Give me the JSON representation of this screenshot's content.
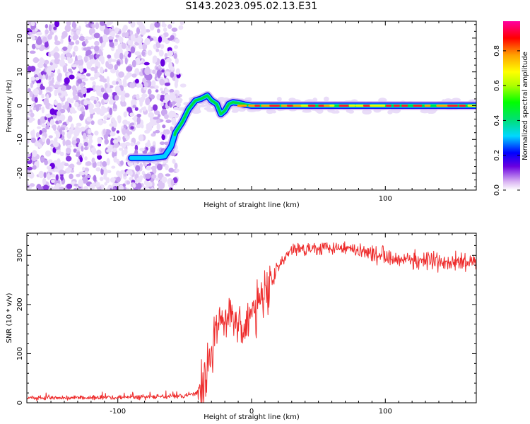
{
  "title": "S143.2023.095.02.13.E31",
  "chart_data": [
    {
      "type": "heatmap",
      "xlabel": "Height of straight line (km)",
      "ylabel": "Frequency (Hz)",
      "xlim": [
        -168,
        168
      ],
      "ylim": [
        -25,
        25
      ],
      "x_ticks": [
        -100,
        0,
        100
      ],
      "x_tick_labels": [
        "-100",
        "",
        "100"
      ],
      "y_ticks": [
        -20,
        -10,
        0,
        10,
        20
      ],
      "y_tick_labels": [
        "-20",
        "-10",
        "0",
        "10",
        "20"
      ],
      "colorbar": {
        "label": "Normalized spectral amplitude",
        "ticks": [
          0.0,
          0.2,
          0.4,
          0.6,
          0.8
        ],
        "tick_labels": [
          "0.0",
          "0.2",
          "0.4",
          "0.6",
          "0.8"
        ],
        "range": [
          0,
          0.97
        ]
      },
      "ridge": {
        "x": [
          -90,
          -75,
          -65,
          -60,
          -57,
          -52,
          -47,
          -42,
          -38,
          -33,
          -30,
          -26,
          -23,
          -20,
          -17,
          -14,
          -10,
          -5,
          0,
          20,
          40,
          60,
          80,
          100,
          120,
          140,
          160,
          168
        ],
        "y": [
          -15.5,
          -15.5,
          -15.0,
          -12.0,
          -8.0,
          -5.0,
          -1.0,
          1.5,
          2.0,
          3.0,
          1.5,
          0.5,
          -2.5,
          -1.5,
          0.5,
          1.0,
          0.8,
          0.3,
          0.0,
          0.0,
          0.0,
          0.0,
          0.0,
          0.0,
          0.0,
          0.0,
          0.0,
          0.0
        ]
      },
      "noise_region_x": [
        -168,
        -55
      ],
      "grid": false
    },
    {
      "type": "line",
      "xlabel": "Height of straight line (km)",
      "ylabel": "SNR (10 * v/v)",
      "xlim": [
        -168,
        168
      ],
      "ylim": [
        0,
        345
      ],
      "x_ticks": [
        -100,
        0,
        100
      ],
      "x_tick_labels": [
        "-100",
        "0",
        "100"
      ],
      "y_ticks": [
        0,
        100,
        200,
        300
      ],
      "y_tick_labels": [
        "0",
        "100",
        "200",
        "300"
      ],
      "color": "#ee2c2c",
      "series": [
        {
          "x": [
            -168,
            -140,
            -100,
            -70,
            -50,
            -40,
            -35,
            -30,
            -25,
            -20,
            -15,
            -10,
            -5,
            0,
            5,
            10,
            15,
            20,
            25,
            30,
            40,
            50,
            60,
            70,
            80,
            90,
            100,
            120,
            140,
            160,
            168
          ],
          "values": [
            10,
            10,
            11,
            12,
            14,
            20,
            50,
            110,
            150,
            170,
            180,
            170,
            150,
            180,
            200,
            230,
            250,
            275,
            295,
            310,
            315,
            315,
            318,
            315,
            310,
            305,
            300,
            290,
            285,
            285,
            288
          ]
        }
      ],
      "grid": false
    }
  ]
}
